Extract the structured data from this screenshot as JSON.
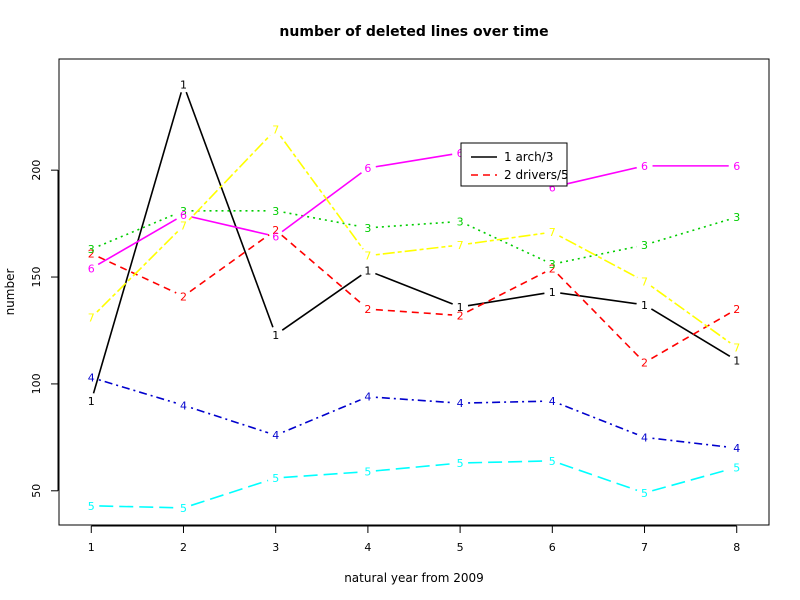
{
  "chart_data": {
    "type": "line",
    "title": "number of deleted lines over time",
    "xlabel": "natural year from 2009",
    "ylabel": "number",
    "x": [
      1,
      2,
      3,
      4,
      5,
      6,
      7,
      8
    ],
    "xlim": [
      0.65,
      8.35
    ],
    "ylim": [
      34,
      252
    ],
    "yticks": [
      50,
      100,
      150,
      200
    ],
    "xticks": [
      1,
      2,
      3,
      4,
      5,
      6,
      7,
      8
    ],
    "series": [
      {
        "label": "1",
        "color": "#000000",
        "dash": "solid",
        "values": [
          92,
          240,
          123,
          153,
          136,
          143,
          137,
          111
        ]
      },
      {
        "label": "2",
        "color": "#ff0000",
        "dash": "dashed",
        "values": [
          161,
          141,
          172,
          135,
          132,
          154,
          110,
          135
        ]
      },
      {
        "label": "3",
        "color": "#00cd00",
        "dash": "dotted",
        "values": [
          163,
          181,
          181,
          173,
          176,
          156,
          165,
          178
        ]
      },
      {
        "label": "4",
        "color": "#0000cd",
        "dash": "dotdash",
        "values": [
          103,
          90,
          76,
          94,
          91,
          92,
          75,
          70
        ]
      },
      {
        "label": "5",
        "color": "#00ffff",
        "dash": "longdash",
        "values": [
          43,
          42,
          56,
          59,
          63,
          64,
          49,
          61
        ]
      },
      {
        "label": "6",
        "color": "#ff00ff",
        "dash": "solid",
        "values": [
          154,
          179,
          169,
          201,
          208,
          192,
          202,
          202
        ]
      },
      {
        "label": "7",
        "color": "#ffff00",
        "dash": "twodash",
        "values": [
          131,
          174,
          219,
          160,
          165,
          171,
          148,
          117
        ]
      }
    ],
    "legend": {
      "position": "top-center",
      "entries": [
        {
          "text": "1 arch/3",
          "color": "#000000",
          "dash": "solid"
        },
        {
          "text": "2 drivers/5",
          "color": "#ff0000",
          "dash": "dashed"
        }
      ]
    }
  }
}
